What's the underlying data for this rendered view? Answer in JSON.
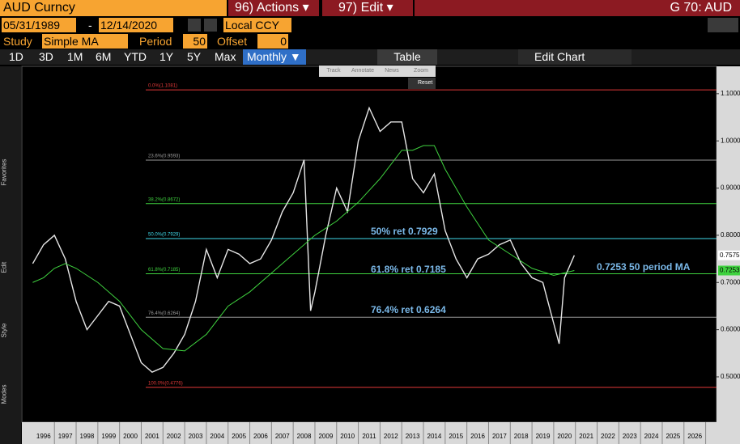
{
  "header": {
    "ticker": "AUD Curncy",
    "actions": "96) Actions ▾",
    "edit": "97) Edit ▾",
    "function": "G 70: AUD"
  },
  "controls": {
    "start_date": "05/31/1989",
    "sep": "-",
    "end_date": "12/14/2020",
    "currency": "Local CCY",
    "study_label": "Study",
    "study": "Simple MA",
    "period_label": "Period",
    "period": "50",
    "offset_label": "Offset",
    "offset": "0"
  },
  "ranges": [
    "1D",
    "3D",
    "1M",
    "6M",
    "YTD",
    "1Y",
    "5Y",
    "Max"
  ],
  "frequency": "Monthly ▼",
  "table": "Table",
  "edit_chart": "Edit Chart",
  "sidebar": [
    "Favorites",
    "Edit",
    "Style",
    "Modes"
  ],
  "chart_tools": [
    "Track",
    "Annotate",
    "News",
    "Zoom"
  ],
  "reset": "Reset",
  "chart_data": {
    "type": "line",
    "xlim": [
      1995.5,
      2027.5
    ],
    "ylim": [
      0.404,
      1.158
    ],
    "xticks": [
      {
        "value": 1996.5,
        "label": "1996"
      },
      {
        "value": 1997.5,
        "label": "1997"
      },
      {
        "value": 1998.5,
        "label": "1998"
      },
      {
        "value": 1999.5,
        "label": "1999"
      },
      {
        "value": 2000.5,
        "label": "2000"
      },
      {
        "value": 2001.5,
        "label": "2001"
      },
      {
        "value": 2002.5,
        "label": "2002"
      },
      {
        "value": 2003.5,
        "label": "2003"
      },
      {
        "value": 2004.5,
        "label": "2004"
      },
      {
        "value": 2005.5,
        "label": "2005"
      },
      {
        "value": 2006.5,
        "label": "2006"
      },
      {
        "value": 2007.5,
        "label": "2007"
      },
      {
        "value": 2008.5,
        "label": "2008"
      },
      {
        "value": 2009.5,
        "label": "2009"
      },
      {
        "value": 2010.5,
        "label": "2010"
      },
      {
        "value": 2011.5,
        "label": "2011"
      },
      {
        "value": 2012.5,
        "label": "2012"
      },
      {
        "value": 2013.5,
        "label": "2013"
      },
      {
        "value": 2014.5,
        "label": "2014"
      },
      {
        "value": 2015.5,
        "label": "2015"
      },
      {
        "value": 2016.5,
        "label": "2016"
      },
      {
        "value": 2017.5,
        "label": "2017"
      },
      {
        "value": 2018.5,
        "label": "2018"
      },
      {
        "value": 2019.5,
        "label": "2019"
      },
      {
        "value": 2020.5,
        "label": "2020"
      },
      {
        "value": 2021.5,
        "label": "2021"
      },
      {
        "value": 2022.5,
        "label": "2022"
      },
      {
        "value": 2023.5,
        "label": "2023"
      },
      {
        "value": 2024.5,
        "label": "2024"
      },
      {
        "value": 2025.5,
        "label": "2025"
      },
      {
        "value": 2026.5,
        "label": "2026"
      }
    ],
    "yticks": [
      {
        "value": 1.1,
        "label": "1.1000"
      },
      {
        "value": 1.0,
        "label": "1.0000"
      },
      {
        "value": 0.9,
        "label": "0.9000"
      },
      {
        "value": 0.8,
        "label": "0.8000"
      },
      {
        "value": 0.7,
        "label": "0.7000"
      },
      {
        "value": 0.6,
        "label": "0.6000"
      },
      {
        "value": 0.5,
        "label": "0.5000"
      }
    ],
    "series": [
      {
        "color": "#e6e6e6",
        "x": [
          1996.0,
          1996.5,
          1997.0,
          1997.5,
          1998.0,
          1998.5,
          1999.0,
          1999.5,
          2000.0,
          2000.5,
          2001.0,
          2001.5,
          2002.0,
          2002.5,
          2003.0,
          2003.5,
          2004.0,
          2004.5,
          2005.0,
          2005.5,
          2006.0,
          2006.5,
          2007.0,
          2007.5,
          2008.0,
          2008.5,
          2008.8,
          2009.0,
          2009.5,
          2010.0,
          2010.5,
          2011.0,
          2011.5,
          2012.0,
          2012.5,
          2013.0,
          2013.5,
          2014.0,
          2014.5,
          2015.0,
          2015.5,
          2016.0,
          2016.5,
          2017.0,
          2017.5,
          2018.0,
          2018.5,
          2019.0,
          2019.5,
          2020.25,
          2020.5,
          2020.95
        ],
        "values": [
          0.74,
          0.78,
          0.8,
          0.75,
          0.66,
          0.6,
          0.63,
          0.66,
          0.65,
          0.59,
          0.53,
          0.51,
          0.52,
          0.55,
          0.59,
          0.66,
          0.77,
          0.71,
          0.77,
          0.76,
          0.74,
          0.75,
          0.79,
          0.85,
          0.89,
          0.96,
          0.64,
          0.68,
          0.8,
          0.9,
          0.85,
          1.0,
          1.07,
          1.02,
          1.04,
          1.04,
          0.92,
          0.89,
          0.93,
          0.81,
          0.75,
          0.71,
          0.75,
          0.76,
          0.78,
          0.79,
          0.74,
          0.71,
          0.7,
          0.57,
          0.71,
          0.7575
        ]
      },
      {
        "color": "#3fd23f",
        "x": [
          1996.0,
          1996.5,
          1997.0,
          1997.5,
          1998.0,
          1999.0,
          2000.0,
          2001.0,
          2002.0,
          2003.0,
          2004.0,
          2005.0,
          2006.0,
          2007.0,
          2008.0,
          2009.0,
          2010.0,
          2011.0,
          2012.0,
          2013.0,
          2013.5,
          2014.0,
          2014.5,
          2015.0,
          2016.0,
          2017.0,
          2018.0,
          2019.0,
          2020.0,
          2020.95
        ],
        "values": [
          0.7,
          0.71,
          0.73,
          0.74,
          0.73,
          0.7,
          0.66,
          0.6,
          0.56,
          0.555,
          0.59,
          0.65,
          0.68,
          0.72,
          0.76,
          0.8,
          0.83,
          0.87,
          0.92,
          0.98,
          0.98,
          0.99,
          0.99,
          0.94,
          0.86,
          0.79,
          0.76,
          0.73,
          0.715,
          0.7253
        ]
      }
    ],
    "levels": [
      {
        "label": "0.0%(1.1081)",
        "value": 1.1081,
        "color": "#e03838"
      },
      {
        "label": "23.6%(0.9593)",
        "value": 0.9593,
        "color": "#9a9a9a"
      },
      {
        "label": "38.2%(0.8672)",
        "value": 0.8672,
        "color": "#3fd23f"
      },
      {
        "label": "50.0%(0.7929)",
        "value": 0.7929,
        "color": "#3fd8e8"
      },
      {
        "label": "61.8%(0.7185)",
        "value": 0.7185,
        "color": "#3fd23f"
      },
      {
        "label": "76.4%(0.6264)",
        "value": 0.6264,
        "color": "#9a9a9a"
      },
      {
        "label": "100.0%(0.4776)",
        "value": 0.4776,
        "color": "#e03838"
      }
    ],
    "annotations": [
      "50% ret 0.7929",
      "61.8% ret 0.7185",
      "76.4% ret 0.6264",
      "0.7253 50 period MA"
    ],
    "last_labels": [
      {
        "value": 0.7575,
        "label": "0.7575",
        "color": "#ffffff"
      },
      {
        "value": 0.7253,
        "label": "0.7253",
        "color": "#3fd23f"
      }
    ]
  }
}
